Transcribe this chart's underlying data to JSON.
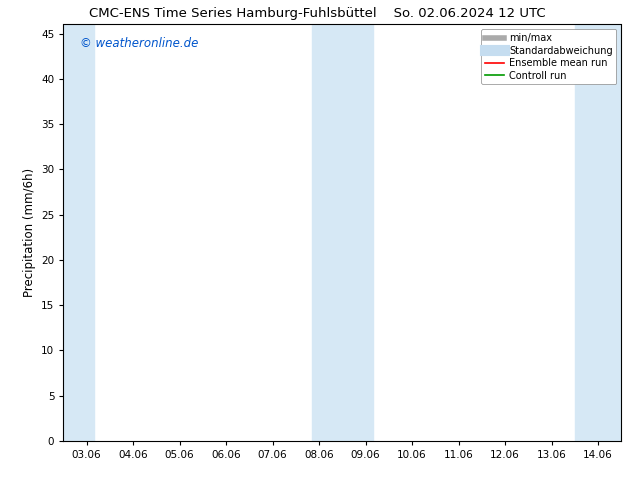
{
  "title_left": "CMC-ENS Time Series Hamburg-Fuhlsbüttel",
  "title_right": "So. 02.06.2024 12 UTC",
  "ylabel": "Precipitation (mm/6h)",
  "watermark": "© weatheronline.de",
  "watermark_color": "#0055cc",
  "x_tick_labels": [
    "03.06",
    "04.06",
    "05.06",
    "06.06",
    "07.06",
    "08.06",
    "09.06",
    "10.06",
    "11.06",
    "12.06",
    "13.06",
    "14.06"
  ],
  "x_tick_positions": [
    0,
    1,
    2,
    3,
    4,
    5,
    6,
    7,
    8,
    9,
    10,
    11
  ],
  "xlim": [
    -0.5,
    11.5
  ],
  "ylim": [
    0,
    46
  ],
  "yticks": [
    0,
    5,
    10,
    15,
    20,
    25,
    30,
    35,
    40,
    45
  ],
  "bg_color": "#ffffff",
  "shaded_bands": [
    {
      "x_start": -0.5,
      "x_end": 0.15,
      "color": "#d6e8f5"
    },
    {
      "x_start": 4.85,
      "x_end": 6.15,
      "color": "#d6e8f5"
    },
    {
      "x_start": 10.5,
      "x_end": 11.5,
      "color": "#d6e8f5"
    }
  ],
  "legend_items": [
    {
      "label": "min/max",
      "color": "#aaaaaa",
      "lw": 4,
      "type": "line"
    },
    {
      "label": "Standardabweichung",
      "color": "#c5ddf0",
      "lw": 8,
      "type": "line"
    },
    {
      "label": "Ensemble mean run",
      "color": "#ff0000",
      "lw": 1.2,
      "type": "line"
    },
    {
      "label": "Controll run",
      "color": "#009900",
      "lw": 1.2,
      "type": "line"
    }
  ],
  "font_size_title": 9.5,
  "font_size_ticks": 7.5,
  "font_size_legend": 7,
  "font_size_ylabel": 8.5,
  "font_size_watermark": 8.5
}
